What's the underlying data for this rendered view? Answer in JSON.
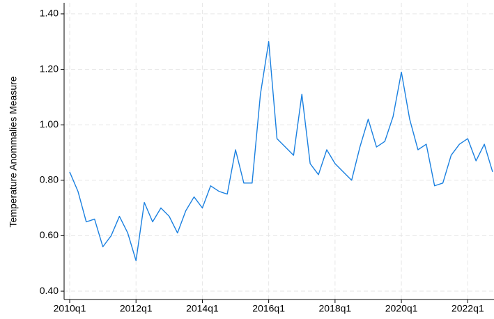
{
  "chart_data": {
    "type": "line",
    "y_label": "Temperature Anommalies Measure",
    "categories": [
      "2010q1",
      null,
      null,
      null,
      null,
      null,
      null,
      null,
      "2012q1",
      null,
      null,
      null,
      null,
      null,
      null,
      null,
      "2014q1",
      null,
      null,
      null,
      null,
      null,
      null,
      null,
      "2016q1",
      null,
      null,
      null,
      null,
      null,
      null,
      null,
      "2018q1",
      null,
      null,
      null,
      null,
      null,
      null,
      null,
      "2020q1",
      null,
      null,
      null,
      null,
      null,
      null,
      null,
      "2022q1",
      null,
      null,
      null
    ],
    "values": [
      0.83,
      0.76,
      0.65,
      0.66,
      0.56,
      0.6,
      0.67,
      0.61,
      0.51,
      0.72,
      0.65,
      0.7,
      0.67,
      0.61,
      0.69,
      0.74,
      0.7,
      0.78,
      0.76,
      0.75,
      0.91,
      0.79,
      0.79,
      1.11,
      1.3,
      0.95,
      0.92,
      0.89,
      1.11,
      0.86,
      0.82,
      0.91,
      0.86,
      0.83,
      0.8,
      0.92,
      1.02,
      0.92,
      0.94,
      1.03,
      1.19,
      1.02,
      0.91,
      0.93,
      0.78,
      0.79,
      0.89,
      0.93,
      0.95,
      0.87,
      0.93,
      0.83
    ],
    "color": "#1a80e0",
    "ylim": [
      0.37,
      1.44
    ],
    "yticks": [
      {
        "value": 0.4,
        "label": "0.40"
      },
      {
        "value": 0.6,
        "label": "0.60"
      },
      {
        "value": 0.8,
        "label": "0.80"
      },
      {
        "value": 1.0,
        "label": "1.00"
      },
      {
        "value": 1.2,
        "label": "1.20"
      },
      {
        "value": 1.4,
        "label": "1.40"
      }
    ],
    "grid": true
  }
}
